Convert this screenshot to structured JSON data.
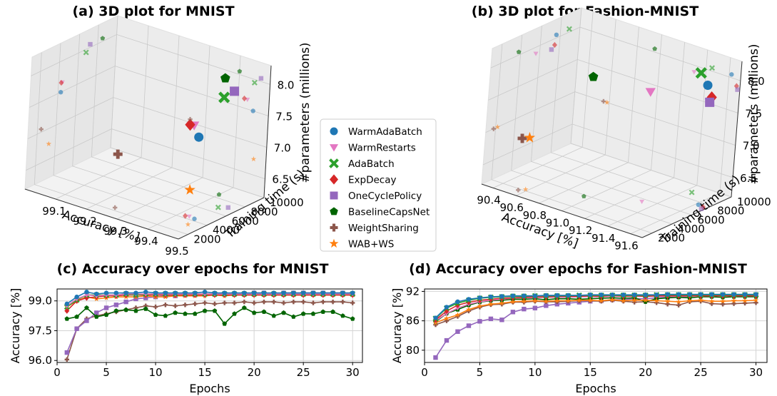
{
  "colors": {
    "WarmAdaBatch": "#1f77b4",
    "WarmRestarts": "#e377c2",
    "AdaBatch": "#2ca02c",
    "ExpDecay": "#d62728",
    "OneCyclePolicy": "#9467bd",
    "BaselineCapsNet": "#006400",
    "WeightSharing": "#8c564b",
    "WAB+WS": "#ff7f0e"
  },
  "legend": {
    "entries": [
      {
        "label": "WarmAdaBatch",
        "marker": "circle-marker"
      },
      {
        "label": "WarmRestarts",
        "marker": "triangle-down-marker"
      },
      {
        "label": "AdaBatch",
        "marker": "x-marker"
      },
      {
        "label": "ExpDecay",
        "marker": "diamond-marker"
      },
      {
        "label": "OneCyclePolicy",
        "marker": "square-marker"
      },
      {
        "label": "BaselineCapsNet",
        "marker": "pentagon-marker"
      },
      {
        "label": "WeightSharing",
        "marker": "plus-marker"
      },
      {
        "label": "WAB+WS",
        "marker": "star-marker"
      }
    ]
  },
  "chart_data": [
    {
      "id": "a",
      "type": "scatter",
      "projection": "3d",
      "title": "(a) 3D plot for MNIST",
      "xlabel": "Accuracy [%]",
      "ylabel": "Training time (s)",
      "zlabel": "#parameters (millions)",
      "xticks": [
        "99.1",
        "99.2",
        "99.3",
        "99.4",
        "99.5"
      ],
      "yticks": [
        "2000",
        "4000",
        "6000",
        "8000",
        "10000"
      ],
      "zticks": [
        "6.5",
        "7.0",
        "7.5",
        "8.0"
      ],
      "xlim": [
        99.0,
        99.5
      ],
      "ylim": [
        1000,
        10000
      ],
      "zlim": [
        6.2,
        8.3
      ],
      "grid": true,
      "points": [
        {
          "series": "WarmAdaBatch",
          "x": 99.45,
          "y": 4300,
          "z": 7.5
        },
        {
          "series": "WarmRestarts",
          "x": 99.43,
          "y": 4400,
          "z": 7.65
        },
        {
          "series": "AdaBatch",
          "x": 99.45,
          "y": 6800,
          "z": 7.95
        },
        {
          "series": "ExpDecay",
          "x": 99.42,
          "y": 4300,
          "z": 7.65
        },
        {
          "series": "OneCyclePolicy",
          "x": 99.47,
          "y": 7200,
          "z": 8.05
        },
        {
          "series": "BaselineCapsNet",
          "x": 99.4,
          "y": 8500,
          "z": 8.05
        },
        {
          "series": "WeightSharing",
          "x": 99.25,
          "y": 2400,
          "z": 7.05
        },
        {
          "series": "WAB+WS",
          "x": 99.46,
          "y": 3300,
          "z": 6.75
        }
      ]
    },
    {
      "id": "b",
      "type": "scatter",
      "projection": "3d",
      "title": "(b) 3D plot for Fashion-MNIST",
      "xlabel": "Accuracy [%]",
      "ylabel": "Training time (s)",
      "zlabel": "#parameters (millions)",
      "xticks": [
        "90.4",
        "90.6",
        "90.8",
        "91.0",
        "91.2",
        "91.4",
        "91.6"
      ],
      "yticks": [
        "2000",
        "4000",
        "6000",
        "8000",
        "10000"
      ],
      "zticks": [
        "6.5",
        "7.0",
        "7.5",
        "8.0"
      ],
      "xlim": [
        90.3,
        91.7
      ],
      "ylim": [
        1000,
        10000
      ],
      "zlim": [
        6.2,
        8.3
      ],
      "grid": true,
      "points": [
        {
          "series": "WarmAdaBatch",
          "x": 91.62,
          "y": 7600,
          "z": 8.05
        },
        {
          "series": "WarmRestarts",
          "x": 91.3,
          "y": 5600,
          "z": 7.9
        },
        {
          "series": "AdaBatch",
          "x": 91.45,
          "y": 8900,
          "z": 8.05
        },
        {
          "series": "ExpDecay",
          "x": 91.67,
          "y": 7500,
          "z": 7.9
        },
        {
          "series": "OneCyclePolicy",
          "x": 91.68,
          "y": 7200,
          "z": 7.85
        },
        {
          "series": "BaselineCapsNet",
          "x": 90.95,
          "y": 3800,
          "z": 8.05
        },
        {
          "series": "WeightSharing",
          "x": 90.55,
          "y": 1800,
          "z": 7.0
        },
        {
          "series": "WAB+WS",
          "x": 90.58,
          "y": 2200,
          "z": 7.0
        }
      ]
    },
    {
      "id": "c",
      "type": "line",
      "title": "(c) Accuracy over epochs for MNIST",
      "xlabel": "Epochs",
      "ylabel": "Accuracy [%]",
      "xlim": [
        0,
        31
      ],
      "ylim": [
        95.9,
        99.6
      ],
      "xticks": [
        0,
        5,
        10,
        15,
        20,
        25,
        30
      ],
      "yticks": [
        96.0,
        97.5,
        99.0
      ],
      "ytick_labels": [
        "96.0",
        "97.5",
        "99.0"
      ],
      "grid": true,
      "x": [
        1,
        2,
        3,
        4,
        5,
        6,
        7,
        8,
        9,
        10,
        11,
        12,
        13,
        14,
        15,
        16,
        17,
        18,
        19,
        20,
        21,
        22,
        23,
        24,
        25,
        26,
        27,
        28,
        29,
        30
      ],
      "series": [
        {
          "name": "WeightSharing",
          "values": [
            96.05,
            97.6,
            98.1,
            98.25,
            98.35,
            98.45,
            98.55,
            98.65,
            98.75,
            98.7,
            98.8,
            98.75,
            98.8,
            98.85,
            98.9,
            98.85,
            98.9,
            98.9,
            98.95,
            98.9,
            98.95,
            98.95,
            98.9,
            98.95,
            98.95,
            98.9,
            98.95,
            98.95,
            98.95,
            98.9
          ]
        },
        {
          "name": "OneCyclePolicy",
          "values": [
            96.4,
            97.6,
            98.0,
            98.4,
            98.65,
            98.8,
            98.95,
            99.1,
            99.15,
            99.2,
            99.25,
            99.25,
            99.3,
            99.3,
            99.35,
            99.35,
            99.35,
            99.35,
            99.35,
            99.4,
            99.4,
            99.35,
            99.4,
            99.4,
            99.4,
            99.4,
            99.4,
            99.4,
            99.4,
            99.35
          ]
        },
        {
          "name": "BaselineCapsNet",
          "values": [
            98.1,
            98.2,
            98.65,
            98.2,
            98.3,
            98.5,
            98.55,
            98.5,
            98.6,
            98.3,
            98.25,
            98.4,
            98.35,
            98.35,
            98.5,
            98.5,
            97.85,
            98.35,
            98.65,
            98.4,
            98.45,
            98.25,
            98.4,
            98.2,
            98.35,
            98.35,
            98.45,
            98.45,
            98.25,
            98.1
          ]
        },
        {
          "name": "WAB+WS",
          "values": [
            98.7,
            99.0,
            99.2,
            99.1,
            99.15,
            99.2,
            99.2,
            99.2,
            99.25,
            99.2,
            99.2,
            99.25,
            99.25,
            99.25,
            99.25,
            99.3,
            99.25,
            99.3,
            99.3,
            99.3,
            99.3,
            99.3,
            99.3,
            99.3,
            99.3,
            99.3,
            99.3,
            99.3,
            99.3,
            99.3
          ]
        },
        {
          "name": "ExpDecay",
          "values": [
            98.5,
            99.0,
            99.15,
            99.2,
            99.25,
            99.25,
            99.3,
            99.3,
            99.3,
            99.3,
            99.3,
            99.3,
            99.3,
            99.3,
            99.3,
            99.3,
            99.3,
            99.3,
            99.3,
            99.3,
            99.3,
            99.3,
            99.3,
            99.3,
            99.3,
            99.3,
            99.3,
            99.3,
            99.3,
            99.3
          ]
        },
        {
          "name": "AdaBatch",
          "values": [
            98.7,
            99.05,
            99.3,
            99.3,
            99.3,
            99.3,
            99.35,
            99.3,
            99.35,
            99.35,
            99.35,
            99.35,
            99.35,
            99.35,
            99.35,
            99.35,
            99.35,
            99.35,
            99.35,
            99.35,
            99.35,
            99.35,
            99.35,
            99.35,
            99.35,
            99.35,
            99.35,
            99.35,
            99.35,
            99.35
          ]
        },
        {
          "name": "WarmRestarts",
          "values": [
            98.75,
            99.1,
            99.3,
            99.25,
            99.3,
            99.3,
            99.35,
            99.35,
            99.35,
            99.35,
            99.35,
            99.35,
            99.35,
            99.35,
            99.35,
            99.35,
            99.35,
            99.35,
            99.35,
            99.35,
            99.35,
            99.35,
            99.35,
            99.35,
            99.35,
            99.35,
            99.35,
            99.35,
            99.35,
            99.35
          ]
        },
        {
          "name": "WarmAdaBatch",
          "values": [
            98.85,
            99.2,
            99.45,
            99.35,
            99.4,
            99.4,
            99.4,
            99.4,
            99.45,
            99.4,
            99.4,
            99.4,
            99.4,
            99.4,
            99.45,
            99.4,
            99.4,
            99.4,
            99.4,
            99.4,
            99.4,
            99.4,
            99.4,
            99.4,
            99.4,
            99.4,
            99.4,
            99.4,
            99.4,
            99.4
          ]
        }
      ]
    },
    {
      "id": "d",
      "type": "line",
      "title": "(d) Accuracy over epochs for Fashion-MNIST",
      "xlabel": "Epochs",
      "ylabel": "Accuracy [%]",
      "xlim": [
        0,
        31
      ],
      "ylim": [
        77.5,
        92.5
      ],
      "xticks": [
        0,
        5,
        10,
        15,
        20,
        25,
        30
      ],
      "yticks": [
        80,
        86,
        92
      ],
      "ytick_labels": [
        "80",
        "86",
        "92"
      ],
      "grid": true,
      "x": [
        1,
        2,
        3,
        4,
        5,
        6,
        7,
        8,
        9,
        10,
        11,
        12,
        13,
        14,
        15,
        16,
        17,
        18,
        19,
        20,
        21,
        22,
        23,
        24,
        25,
        26,
        27,
        28,
        29,
        30
      ],
      "series": [
        {
          "name": "OneCyclePolicy",
          "values": [
            78.5,
            82.0,
            83.8,
            85.0,
            85.9,
            86.4,
            86.2,
            87.8,
            88.4,
            88.6,
            89.1,
            89.4,
            89.6,
            89.8,
            90.0,
            90.1,
            90.3,
            90.3,
            90.5,
            90.5,
            90.7,
            90.8,
            90.9,
            91.0,
            91.1,
            91.1,
            91.2,
            91.3,
            91.3,
            91.3
          ]
        },
        {
          "name": "WeightSharing",
          "values": [
            85.2,
            86.0,
            86.9,
            88.0,
            88.8,
            89.3,
            89.4,
            89.8,
            89.8,
            90.0,
            89.9,
            89.9,
            90.0,
            90.1,
            90.1,
            90.0,
            90.2,
            90.0,
            89.8,
            89.9,
            89.7,
            89.4,
            89.2,
            89.9,
            90.0,
            89.5,
            89.4,
            89.5,
            89.6,
            89.7
          ]
        },
        {
          "name": "BaselineCapsNet",
          "values": [
            85.8,
            87.5,
            88.3,
            89.2,
            89.8,
            90.1,
            90.2,
            90.4,
            90.4,
            90.5,
            90.3,
            90.5,
            90.5,
            90.4,
            90.5,
            90.6,
            90.7,
            90.6,
            90.7,
            89.9,
            90.5,
            90.7,
            90.8,
            90.7,
            90.9,
            90.9,
            90.8,
            90.9,
            90.9,
            90.9
          ]
        },
        {
          "name": "WAB+WS",
          "values": [
            85.6,
            86.5,
            87.2,
            88.3,
            89.0,
            89.4,
            89.6,
            89.9,
            90.0,
            90.1,
            90.0,
            90.1,
            90.1,
            90.2,
            90.2,
            90.1,
            90.3,
            90.1,
            90.2,
            90.2,
            90.1,
            90.0,
            89.9,
            90.1,
            90.2,
            90.0,
            90.0,
            90.1,
            90.1,
            90.2
          ]
        },
        {
          "name": "WarmRestarts",
          "values": [
            86.0,
            87.5,
            88.6,
            89.4,
            89.9,
            90.2,
            90.4,
            90.6,
            90.7,
            90.7,
            90.8,
            90.8,
            90.8,
            90.9,
            90.9,
            90.9,
            91.0,
            91.0,
            91.0,
            91.0,
            91.0,
            91.0,
            91.0,
            91.1,
            91.1,
            91.1,
            91.1,
            91.1,
            91.1,
            91.1
          ]
        },
        {
          "name": "ExpDecay",
          "values": [
            86.2,
            88.0,
            89.2,
            89.8,
            90.2,
            90.4,
            90.6,
            90.7,
            90.8,
            90.9,
            90.9,
            91.0,
            91.0,
            91.0,
            91.1,
            91.0,
            91.2,
            91.0,
            91.1,
            91.0,
            91.1,
            91.1,
            91.1,
            91.1,
            91.1,
            91.1,
            91.1,
            91.1,
            91.1,
            91.1
          ]
        },
        {
          "name": "AdaBatch",
          "values": [
            86.5,
            88.6,
            89.6,
            90.2,
            90.6,
            90.8,
            90.9,
            91.0,
            91.0,
            91.1,
            91.1,
            91.1,
            91.1,
            91.2,
            91.2,
            91.2,
            91.2,
            91.2,
            91.2,
            91.2,
            91.3,
            91.3,
            91.3,
            91.3,
            91.3,
            91.3,
            91.3,
            91.3,
            91.3,
            91.3
          ]
        },
        {
          "name": "WarmAdaBatch",
          "values": [
            86.6,
            88.8,
            89.9,
            90.4,
            90.7,
            90.9,
            91.0,
            91.1,
            91.1,
            91.1,
            91.2,
            91.2,
            91.2,
            91.2,
            91.3,
            91.3,
            91.3,
            91.3,
            91.3,
            91.3,
            91.3,
            91.4,
            91.4,
            91.4,
            91.4,
            91.4,
            91.4,
            91.4,
            91.4,
            91.4
          ]
        }
      ]
    }
  ]
}
